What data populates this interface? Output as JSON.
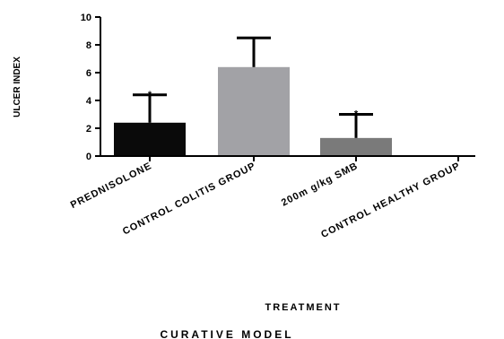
{
  "chart_data": {
    "type": "bar",
    "categories": [
      "PREDNISOLONE",
      "CONTROL COLITIS GROUP",
      "200mg/kg SMB",
      "CONTROL HEALTHY GROUP"
    ],
    "categories_display": [
      "PREDNISOLONE",
      "CONTROL COLITIS GROUP",
      "200m g/kg SMB",
      "CONTROL HEALTHY GROUP"
    ],
    "values": [
      2.4,
      6.4,
      1.3,
      0
    ],
    "error": [
      2.0,
      2.1,
      1.7,
      0
    ],
    "significance": [
      "*",
      "",
      "*",
      ""
    ],
    "colors": [
      "#0a0a0a",
      "#a2a2a6",
      "#7a7a7a",
      "#ffffff"
    ],
    "ylabel": "ULCER INDEX",
    "xlabel": "TREATMENT",
    "caption": "CURATIVE MODEL",
    "ylim": [
      0,
      10
    ],
    "yticks": [
      0,
      2,
      4,
      6,
      8,
      10
    ],
    "grid": false
  }
}
